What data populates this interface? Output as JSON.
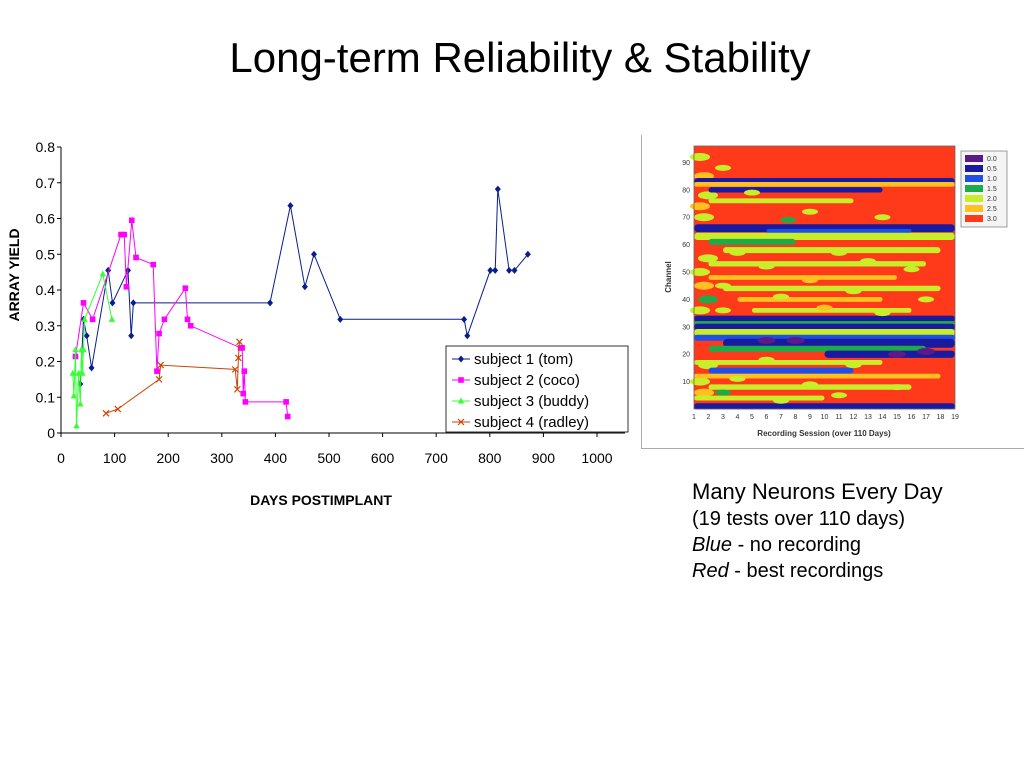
{
  "slide": {
    "title": "Long-term Reliability & Stability"
  },
  "chart_data": {
    "type": "line",
    "title": "",
    "xlabel": "DAYS POSTIMPLANT",
    "ylabel": "ARRAY YIELD",
    "xlim": [
      0,
      1000
    ],
    "ylim": [
      0,
      0.8
    ],
    "xticks": [
      "0",
      "100",
      "200",
      "300",
      "400",
      "500",
      "600",
      "700",
      "800",
      "900",
      "1000"
    ],
    "yticks": [
      "0",
      "0.1",
      "0.2",
      "0.3",
      "0.4",
      "0.5",
      "0.6",
      "0.7",
      "0.8"
    ],
    "grid": false,
    "legend_position": "bottom-right",
    "series": [
      {
        "name": "subject 1 (tom)",
        "color": "#0a1d8c",
        "marker": "diamond",
        "x": [
          36,
          42,
          48,
          57,
          88,
          96,
          125,
          131,
          135,
          390,
          428,
          455,
          472,
          521,
          752,
          758,
          801,
          810,
          815,
          836,
          846,
          871
        ],
        "y": [
          0.137,
          0.318,
          0.272,
          0.182,
          0.455,
          0.364,
          0.455,
          0.272,
          0.364,
          0.364,
          0.636,
          0.409,
          0.5,
          0.318,
          0.318,
          0.272,
          0.455,
          0.455,
          0.682,
          0.455,
          0.455,
          0.5
        ]
      },
      {
        "name": "subject 2 (coco)",
        "color": "#ff00ff",
        "marker": "square",
        "x": [
          27,
          42,
          59,
          112,
          118,
          122,
          132,
          140,
          172,
          179,
          183,
          193,
          232,
          236,
          242,
          335,
          338,
          340,
          342,
          344,
          420,
          423
        ],
        "y": [
          0.214,
          0.364,
          0.318,
          0.555,
          0.555,
          0.409,
          0.595,
          0.491,
          0.471,
          0.173,
          0.278,
          0.318,
          0.405,
          0.318,
          0.3,
          0.238,
          0.238,
          0.11,
          0.173,
          0.087,
          0.087,
          0.046
        ]
      },
      {
        "name": "subject 3 (buddy)",
        "color": "#33ff33",
        "marker": "triangle",
        "x": [
          22,
          24,
          27,
          29,
          33,
          36,
          38,
          40,
          42,
          44,
          78,
          95
        ],
        "y": [
          0.167,
          0.104,
          0.233,
          0.02,
          0.167,
          0.081,
          0.233,
          0.167,
          0.233,
          0.318,
          0.445,
          0.318
        ]
      },
      {
        "name": "subject 4 (radley)",
        "color": "#cc4400",
        "marker": "x",
        "x": [
          84,
          106,
          183,
          186,
          325,
          329,
          331,
          333
        ],
        "y": [
          0.055,
          0.067,
          0.15,
          0.19,
          0.178,
          0.122,
          0.21,
          0.255
        ]
      }
    ]
  },
  "heatmap": {
    "ylabel": "Channel",
    "xlabel": "Recording Session (over 110 Days)",
    "yticks": [
      "90",
      "80",
      "70",
      "60",
      "50",
      "40",
      "30",
      "20",
      "10"
    ],
    "xticks": [
      "1",
      "2",
      "3",
      "4",
      "5",
      "6",
      "7",
      "8",
      "9",
      "10",
      "11",
      "12",
      "13",
      "14",
      "15",
      "16",
      "17",
      "18",
      "19"
    ],
    "legend": [
      {
        "label": "0.0",
        "color": "#5a1a8a"
      },
      {
        "label": "0.5",
        "color": "#1a1aa0"
      },
      {
        "label": "1.0",
        "color": "#1e50e6"
      },
      {
        "label": "1.5",
        "color": "#1faa4a"
      },
      {
        "label": "2.0",
        "color": "#c8ee2a"
      },
      {
        "label": "2.5",
        "color": "#ffc020"
      },
      {
        "label": "3.0",
        "color": "#ff3a1a"
      }
    ]
  },
  "caption": {
    "heading": "Many Neurons Every Day",
    "line1": "(19 tests over 110 days)",
    "blue_word": "Blue",
    "blue_rest": " - no recording",
    "red_word": "Red",
    "red_rest": " - best recordings"
  }
}
